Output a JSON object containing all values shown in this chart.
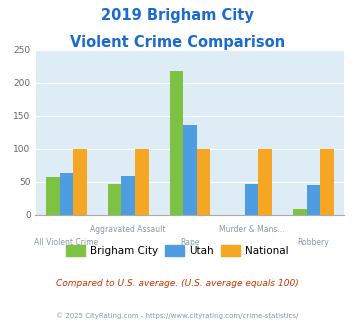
{
  "title_line1": "2019 Brigham City",
  "title_line2": "Violent Crime Comparison",
  "brigham_city": [
    57,
    46,
    217,
    0,
    8
  ],
  "utah": [
    63,
    58,
    135,
    46,
    44
  ],
  "national": [
    100,
    100,
    100,
    100,
    100
  ],
  "colors": {
    "brigham_city": "#7dc242",
    "utah": "#4d9de0",
    "national": "#f5a623"
  },
  "ylim": [
    0,
    250
  ],
  "yticks": [
    0,
    50,
    100,
    150,
    200,
    250
  ],
  "title_color": "#1a6bcc",
  "xlabel_color": "#8899aa",
  "background_color": "#deedf5",
  "footnote1": "Compared to U.S. average. (U.S. average equals 100)",
  "footnote2": "© 2025 CityRating.com - https://www.cityrating.com/crime-statistics/",
  "footnote1_color": "#cc3300",
  "footnote2_color": "#8899aa",
  "legend_labels": [
    "Brigham City",
    "Utah",
    "National"
  ],
  "top_xlabels": [
    "",
    "Aggravated Assault",
    "",
    "Murder & Mans...",
    ""
  ],
  "bottom_xlabels": [
    "All Violent Crime",
    "",
    "Rape",
    "",
    "Robbery"
  ]
}
